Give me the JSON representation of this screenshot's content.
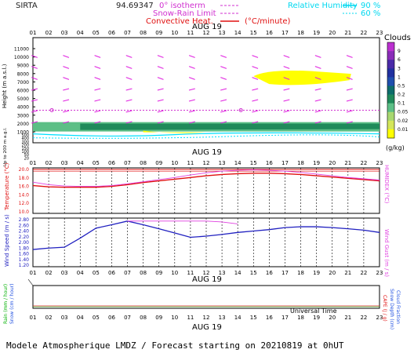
{
  "header": {
    "station": "SIRTA",
    "coords": "94.69347",
    "legend_isotherm": "0° isotherm",
    "legend_snow_rain": "Snow-Rain Limit",
    "legend_convective": "Convective Heat.",
    "legend_convective_unit": "(°C/minute)",
    "legend_rh": "Relative Humidity",
    "rh_90": "90 %",
    "rh_60": "60 %"
  },
  "hours": [
    "01",
    "02",
    "03",
    "04",
    "05",
    "06",
    "07",
    "08",
    "09",
    "10",
    "11",
    "12",
    "13",
    "14",
    "15",
    "16",
    "17",
    "18",
    "19",
    "20",
    "21",
    "22",
    "23"
  ],
  "date_label": "AUG 19",
  "footer": {
    "universal_time": "Universal Time",
    "title": "Modele Atmospherique LMDZ / Forecast starting on 20210819 at 0hUT"
  },
  "colors": {
    "temperature": "#e01010",
    "humidex": "#e040e0",
    "wind_speed": "#2020c0",
    "wind_gust": "#e040e0",
    "wind_barb": "#e020e0",
    "cloud_yellow": "#ffff00",
    "cloud_green": "#1f8a5a",
    "rh_cyan": "#00e0ff",
    "rain_green": "#00c000"
  },
  "chart_data": [
    {
      "type": "heatmap",
      "title": "Clouds",
      "ylabel": "Height (m a.s.l.)",
      "ylabel_low": "Up to 200 m a.g.l.",
      "y_ticks": [
        "11000",
        "10000",
        "9000",
        "8000",
        "7000",
        "6000",
        "5000",
        "4000",
        "3000",
        "2000",
        "1000",
        "500",
        "400",
        "300",
        "200",
        "150",
        "100",
        "50",
        "20"
      ],
      "colorbar_label": "Clouds",
      "colorbar_unit": "(g/kg)",
      "colorbar_ticks": [
        "9",
        "6",
        "3",
        "1",
        "0.5",
        "0.2",
        "0.1",
        "0.05",
        "0.02",
        "0.01"
      ],
      "colorbar_colors": [
        "#ffff00",
        "#d4e65a",
        "#a8d870",
        "#5cbf86",
        "#1f8a5a",
        "#0d6d6b",
        "#1f4fae",
        "#2030a0",
        "#4a2aa8",
        "#8a2cb8",
        "#bb30d0"
      ],
      "isotherm_height_m": 3600,
      "cloud_layers": [
        {
          "name": "high-cloud",
          "from_hour": 15,
          "to_hour": 21,
          "height_m": 7500,
          "value_gkg": 0.01
        },
        {
          "name": "low-cloud",
          "from_hour": 1,
          "to_hour": 23,
          "height_m": 1600,
          "value_gkg": 0.1
        }
      ]
    },
    {
      "type": "line",
      "ylabel_left": "Temperature (°C)",
      "ylabel_right": "HUMIDEX (°C)",
      "ylim": [
        10,
        20
      ],
      "y_ticks": [
        "20.0",
        "18.0",
        "16.0",
        "14.0",
        "12.0",
        "10.0"
      ],
      "x": [
        1,
        2,
        3,
        4,
        5,
        6,
        7,
        8,
        9,
        10,
        11,
        12,
        13,
        14,
        15,
        16,
        17,
        18,
        19,
        20,
        21,
        22,
        23
      ],
      "series": [
        {
          "name": "Temperature",
          "values": [
            16.2,
            15.9,
            15.8,
            15.8,
            15.8,
            16.0,
            16.4,
            16.9,
            17.3,
            17.7,
            18.1,
            18.5,
            18.8,
            19.0,
            19.1,
            19.1,
            19.0,
            18.8,
            18.5,
            18.2,
            17.9,
            17.6,
            17.3
          ]
        },
        {
          "name": "HUMIDEX",
          "values": [
            17.0,
            16.4,
            16.1,
            16.0,
            16.0,
            16.2,
            16.6,
            17.1,
            17.6,
            18.1,
            18.7,
            19.2,
            19.6,
            19.8,
            19.9,
            19.8,
            19.6,
            19.3,
            18.9,
            18.5,
            18.1,
            17.8,
            17.5
          ]
        }
      ]
    },
    {
      "type": "line",
      "ylabel_left": "Wind Speed (m / s)",
      "ylabel_right": "Wind Gust (m / s)",
      "ylim": [
        1.2,
        2.8
      ],
      "y_ticks": [
        "2.80",
        "2.60",
        "2.40",
        "2.20",
        "2.00",
        "1.80",
        "1.60",
        "1.40",
        "1.20"
      ],
      "x": [
        1,
        2,
        3,
        4,
        5,
        6,
        7,
        8,
        9,
        10,
        11,
        12,
        13,
        14,
        15,
        16,
        17,
        18,
        19,
        20,
        21,
        22,
        23
      ],
      "series": [
        {
          "name": "Wind Speed",
          "values": [
            1.75,
            1.8,
            1.83,
            2.15,
            2.5,
            2.62,
            2.75,
            2.62,
            2.48,
            2.33,
            2.18,
            2.22,
            2.28,
            2.35,
            2.4,
            2.45,
            2.52,
            2.55,
            2.55,
            2.52,
            2.48,
            2.43,
            2.35
          ]
        },
        {
          "name": "Wind Gust",
          "values": [
            null,
            null,
            null,
            null,
            null,
            null,
            2.75,
            2.75,
            2.75,
            2.75,
            2.75,
            2.75,
            2.72,
            2.65,
            null,
            null,
            null,
            null,
            null,
            null,
            null,
            null,
            null
          ]
        }
      ]
    },
    {
      "type": "bar",
      "ylabel_left": "Rain (mm / hour)",
      "ylabel_left2": "Snow (cm / hour)",
      "ylabel_right": "CAPE (J / g)",
      "ylabel_right2": "Snow Depth (cm)",
      "ylabel_right3": "Cloud Fraction",
      "x": [
        1,
        2,
        3,
        4,
        5,
        6,
        7,
        8,
        9,
        10,
        11,
        12,
        13,
        14,
        15,
        16,
        17,
        18,
        19,
        20,
        21,
        22,
        23
      ],
      "values": [
        0,
        0,
        0,
        0,
        0,
        0,
        0,
        0,
        0,
        0,
        0,
        0,
        0,
        0,
        0,
        0,
        0,
        0,
        0,
        0,
        0,
        0,
        0
      ]
    }
  ]
}
